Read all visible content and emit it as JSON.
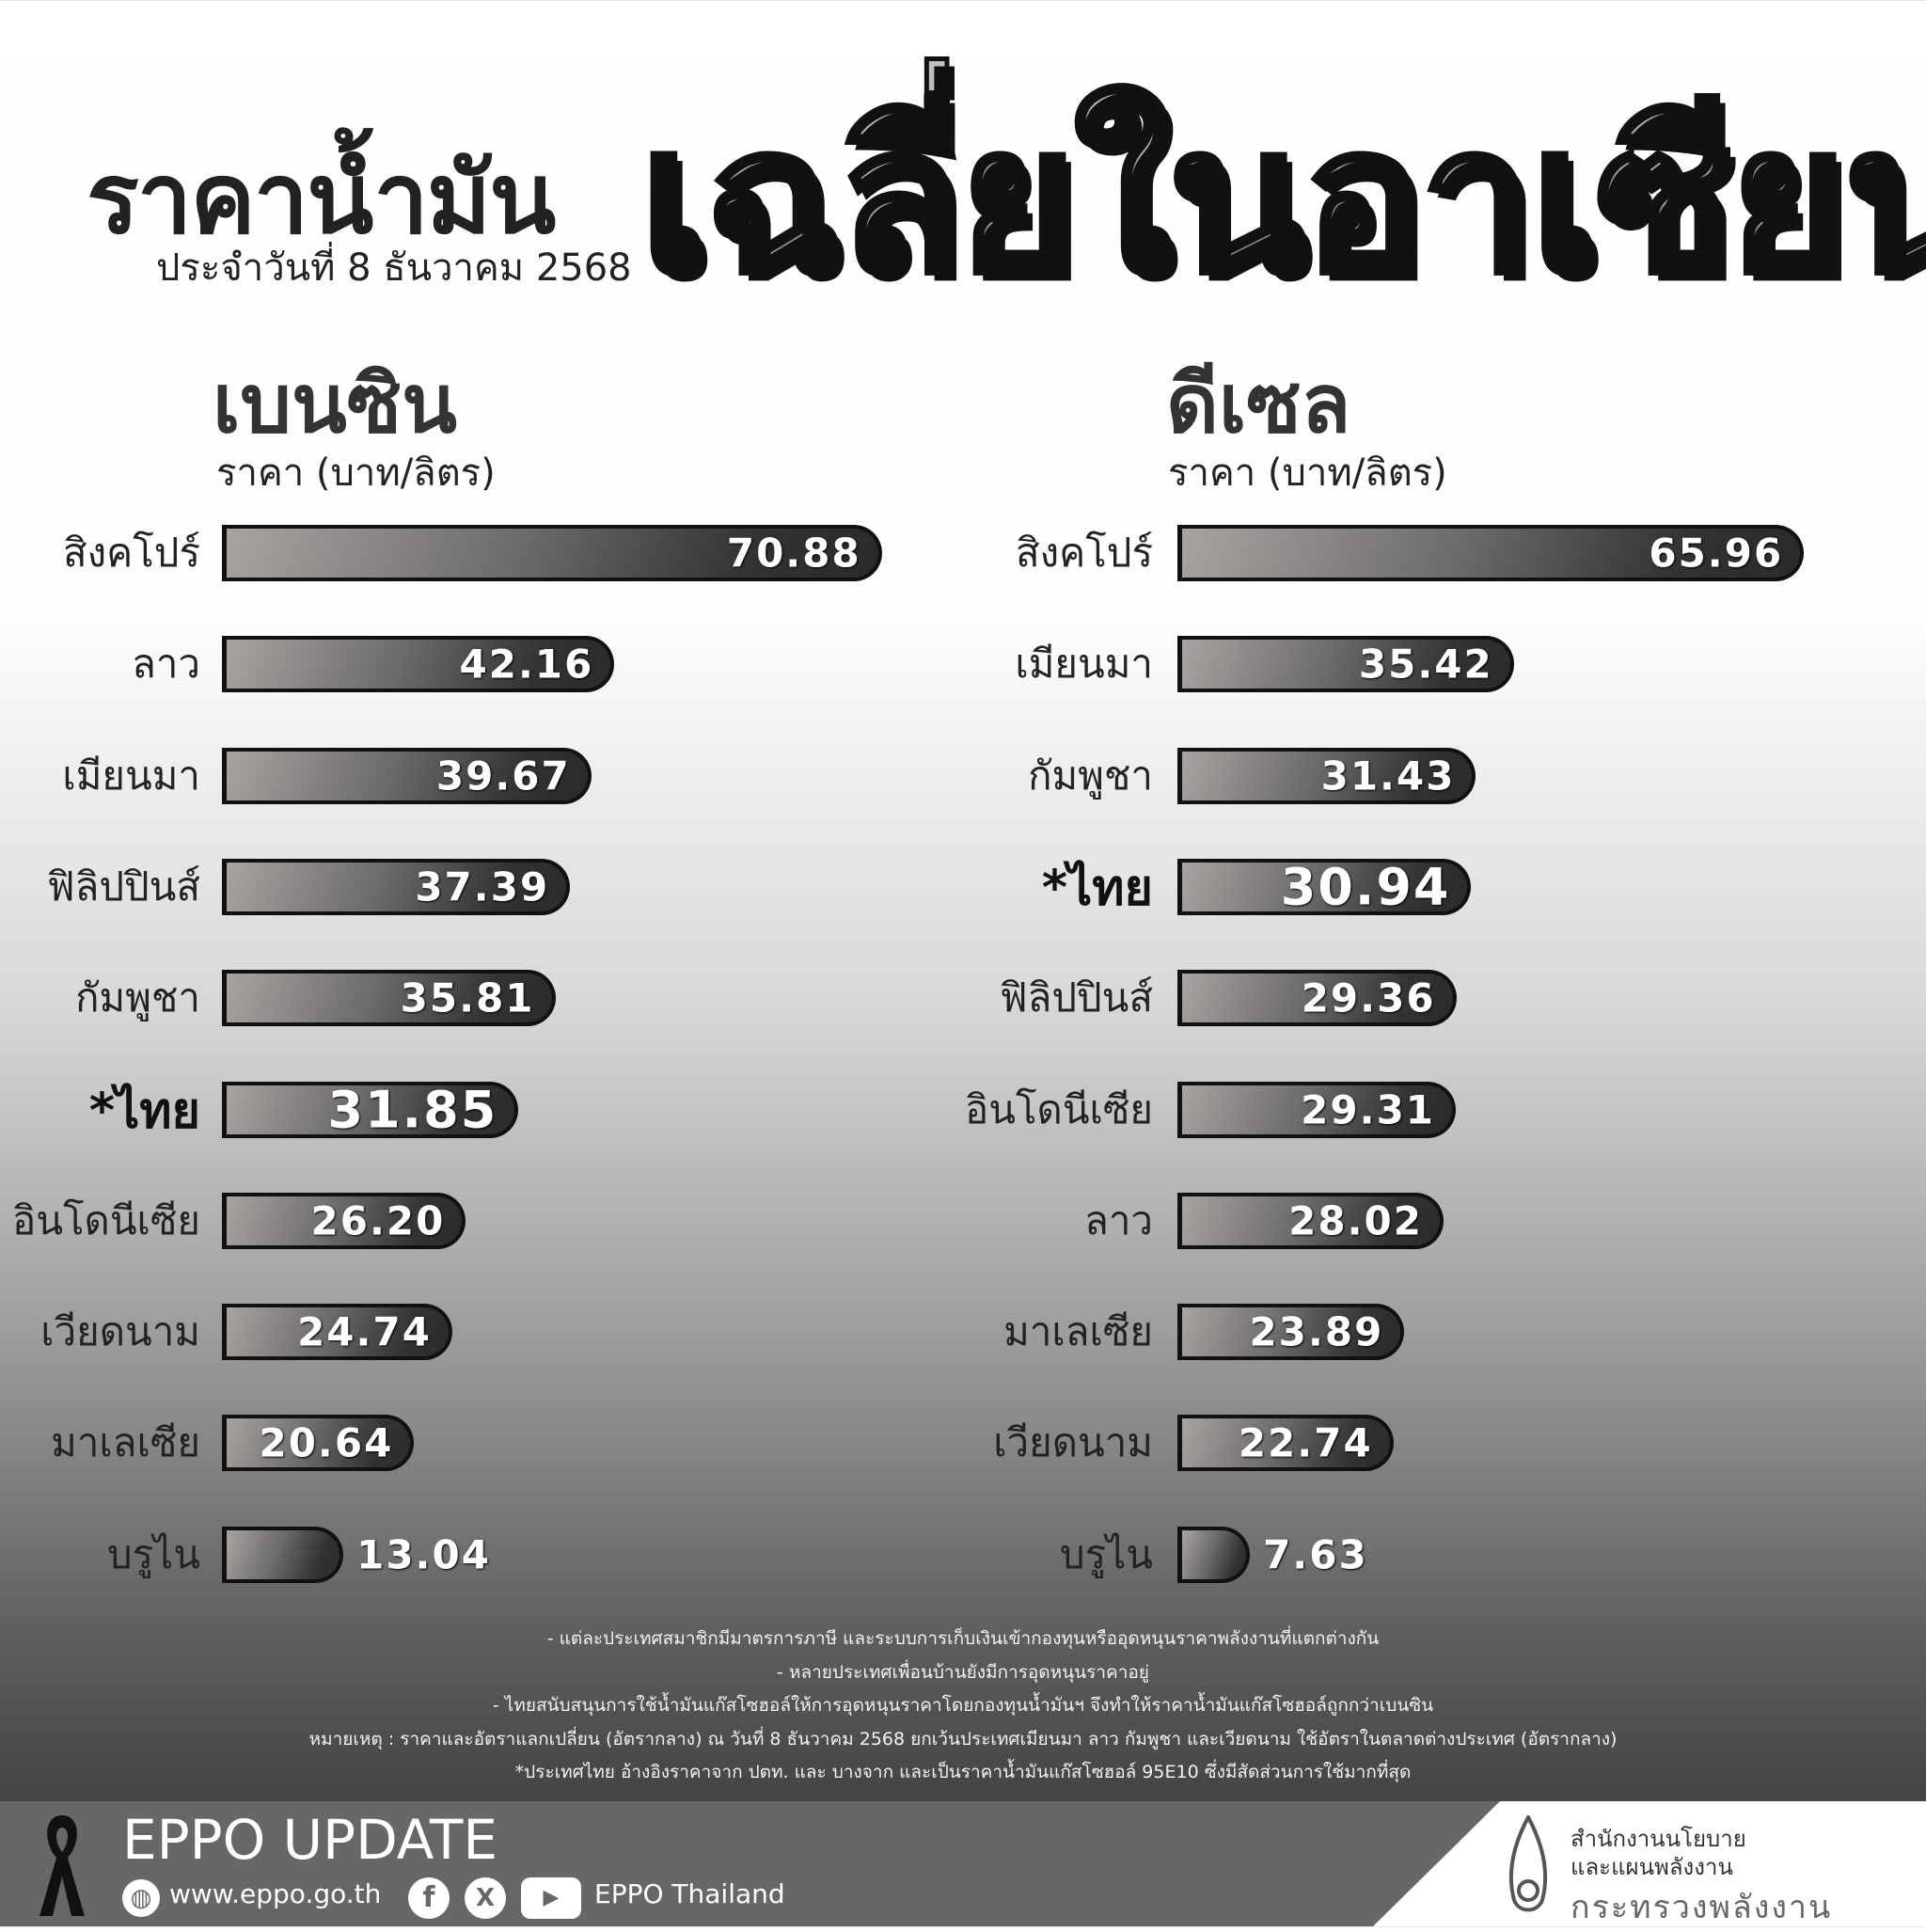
{
  "header": {
    "title_left": "ราคาน้ำมัน",
    "date": "ประจำวันที่  8 ธันวาคม 2568",
    "title_big": "เฉลี่ยในอาเซียน"
  },
  "benzine": {
    "title": "เบนซิน",
    "unit": "ราคา (บาท/ลิตร)"
  },
  "diesel": {
    "title": "ดีเซล",
    "unit": "ราคา (บาท/ลิตร)"
  },
  "chart_data": [
    {
      "type": "bar",
      "orientation": "horizontal",
      "title": "เบนซิน",
      "xlabel": "ราคา (บาท/ลิตร)",
      "categories": [
        "สิงคโปร์",
        "ลาว",
        "เมียนมา",
        "ฟิลิปปินส์",
        "กัมพูชา",
        "*ไทย",
        "อินโดนีเซีย",
        "เวียดนาม",
        "มาเลเซีย",
        "บรูไน"
      ],
      "values": [
        "70.88",
        "42.16",
        "39.67",
        "37.39",
        "35.81",
        "31.85",
        "26.20",
        "24.74",
        "20.64",
        "13.04"
      ],
      "highlight": "*ไทย"
    },
    {
      "type": "bar",
      "orientation": "horizontal",
      "title": "ดีเซล",
      "xlabel": "ราคา (บาท/ลิตร)",
      "categories": [
        "สิงคโปร์",
        "เมียนมา",
        "กัมพูชา",
        "*ไทย",
        "ฟิลิปปินส์",
        "อินโดนีเซีย",
        "ลาว",
        "มาเลเซีย",
        "เวียดนาม",
        "บรูไน"
      ],
      "values": [
        "65.96",
        "35.42",
        "31.43",
        "30.94",
        "29.36",
        "29.31",
        "28.02",
        "23.89",
        "22.74",
        "7.63"
      ],
      "highlight": "*ไทย"
    }
  ],
  "notes": [
    "- แต่ละประเทศสมาชิกมีมาตรการภาษี และระบบการเก็บเงินเข้ากองทุนหรืออุดหนุนราคาพลังงานที่แตกต่างกัน",
    "- หลายประเทศเพื่อนบ้านยังมีการอุดหนุนราคาอยู่",
    "- ไทยสนับสนุนการใช้น้ำมันแก๊สโซฮอล์ให้การอุดหนุนราคาโดยกองทุนน้ำมันฯ จึงทำให้ราคาน้ำมันแก๊สโซฮอล์ถูกกว่าเบนซิน",
    "หมายเหตุ : ราคาและอัตราแลกเปลี่ยน (อัตรากลาง) ณ วันที่ 8 ธันวาคม 2568 ยกเว้นประเทศเมียนมา ลาว กัมพูชา และเวียดนาม ใช้อัตราในตลาดต่างประเทศ (อัตรากลาง)",
    "*ประเทศไทย อ้างอิงราคาจาก ปตท. และ บางจาก และเป็นราคาน้ำมันแก๊สโซฮอล์ 95E10 ซึ่งมีสัดส่วนการใช้มากที่สุด"
  ],
  "footer": {
    "brand": "EPPO UPDATE",
    "website": "www.eppo.go.th",
    "social": "EPPO Thailand",
    "org_line1": "สำนักงานนโยบาย",
    "org_line2": "และแผนพลังงาน",
    "org_line3": "กระทรวงพลังงาน"
  }
}
